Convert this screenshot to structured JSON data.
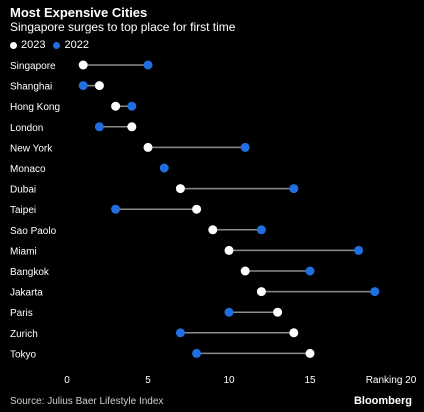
{
  "chart_data": {
    "type": "dumbbell",
    "title": "Most Expensive Cities",
    "subtitle": "Singapore surges to top place for first time",
    "xlabel": "Ranking",
    "xlim": [
      0,
      20
    ],
    "xticks": [
      0,
      5,
      10,
      15,
      20
    ],
    "legend": {
      "placement": "top-left",
      "entries": [
        {
          "name": "2023",
          "color": "#ffffff"
        },
        {
          "name": "2022",
          "color": "#1f6fe0"
        }
      ]
    },
    "categories": [
      "Singapore",
      "Shanghai",
      "Hong Kong",
      "London",
      "New York",
      "Monaco",
      "Dubai",
      "Taipei",
      "Sao Paolo",
      "Miami",
      "Bangkok",
      "Jakarta",
      "Paris",
      "Zurich",
      "Tokyo"
    ],
    "series": [
      {
        "name": "2023",
        "color": "#ffffff",
        "values": [
          1,
          2,
          3,
          4,
          5,
          6,
          7,
          8,
          9,
          10,
          11,
          12,
          13,
          14,
          15
        ]
      },
      {
        "name": "2022",
        "color": "#1f6fe0",
        "values": [
          5,
          1,
          4,
          2,
          11,
          6,
          14,
          3,
          12,
          18,
          15,
          19,
          10,
          7,
          8
        ]
      }
    ],
    "grid": false,
    "connector_color": "#8a8a8a"
  },
  "source": "Source: Julius Baer Lifestyle Index",
  "brand": "Bloomberg"
}
